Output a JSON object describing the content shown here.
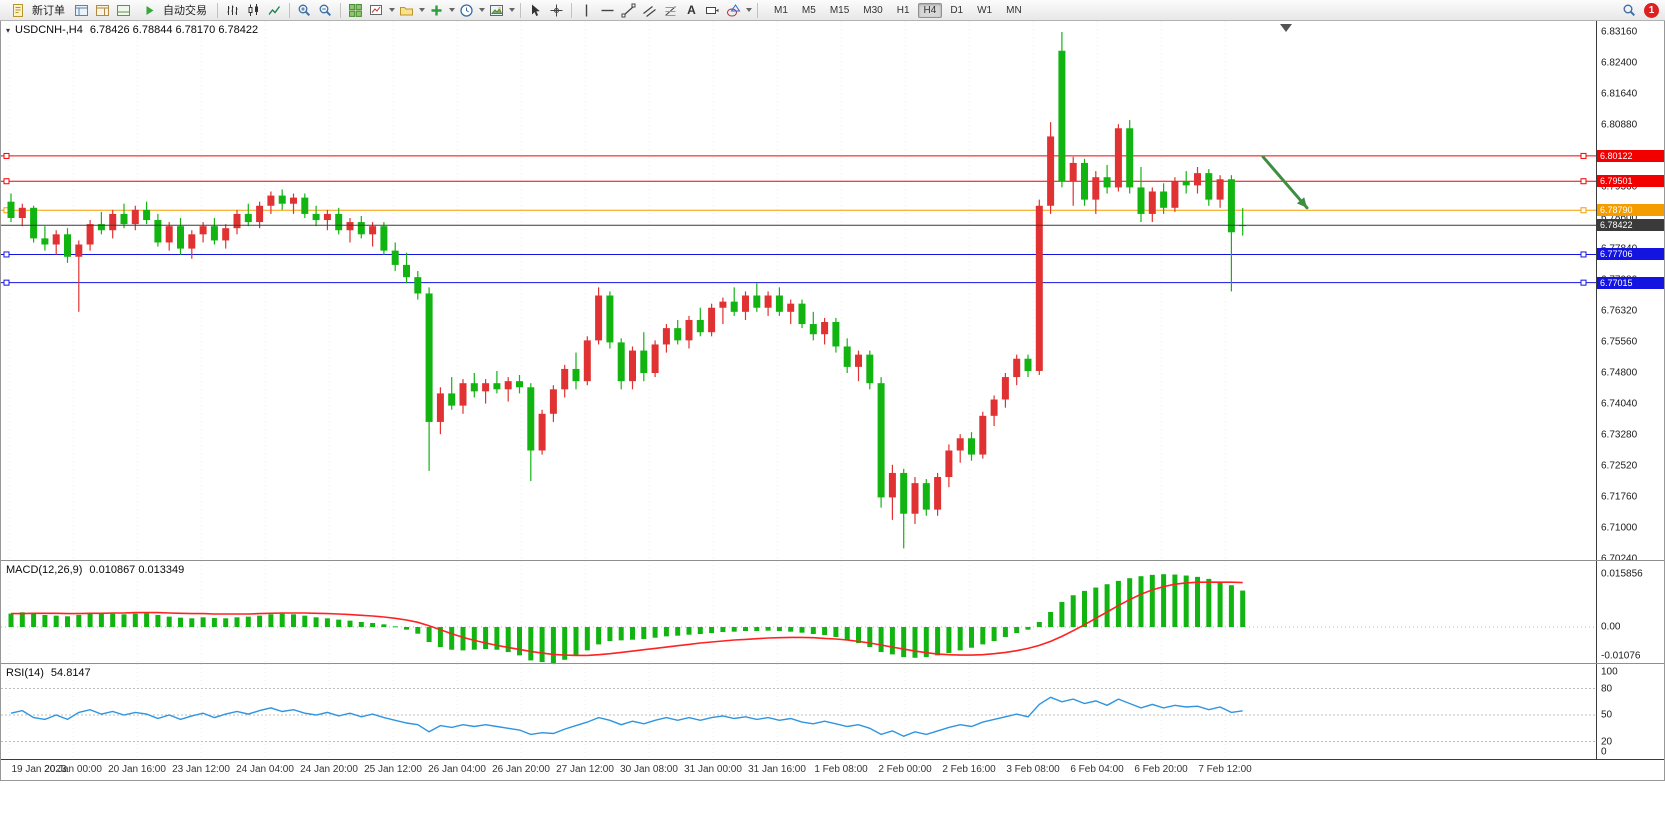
{
  "toolbar": {
    "new_order_label": "新订单",
    "auto_trading_label": "自动交易",
    "text_tool_label": "A",
    "timeframes": [
      "M1",
      "M5",
      "M15",
      "M30",
      "H1",
      "H4",
      "D1",
      "W1",
      "MN"
    ],
    "active_timeframe": "H4",
    "notification_count": "1"
  },
  "chart_header": {
    "title": "USDCNH-,H4",
    "ohlc": "6.78426 6.78844 6.78170 6.78422"
  },
  "chart_data": {
    "type": "candlestick",
    "symbol": "USDCNH-",
    "timeframe": "H4",
    "current_bar": {
      "open": 6.78426,
      "high": 6.78844,
      "low": 6.7817,
      "close": 6.78422
    },
    "price_axis": {
      "min": 6.7024,
      "max": 6.8316,
      "ticks": [
        "6.83160",
        "6.82400",
        "6.81640",
        "6.80880",
        "6.80120",
        "6.79360",
        "6.78600",
        "6.77840",
        "6.77080",
        "6.76320",
        "6.75560",
        "6.74800",
        "6.74040",
        "6.73280",
        "6.72520",
        "6.71760",
        "6.71000",
        "6.70240"
      ]
    },
    "time_ticks": [
      "19 Jan 2023",
      "20 Jan 00:00",
      "20 Jan 16:00",
      "23 Jan 12:00",
      "24 Jan 04:00",
      "24 Jan 20:00",
      "25 Jan 12:00",
      "26 Jan 04:00",
      "26 Jan 20:00",
      "27 Jan 12:00",
      "30 Jan 08:00",
      "31 Jan 00:00",
      "31 Jan 16:00",
      "1 Feb 08:00",
      "2 Feb 00:00",
      "2 Feb 16:00",
      "3 Feb 08:00",
      "6 Feb 04:00",
      "6 Feb 20:00",
      "7 Feb 12:00"
    ],
    "levels": [
      {
        "label": "6.80122",
        "price": 6.80122,
        "color": "#f20000"
      },
      {
        "label": "6.79501",
        "price": 6.79501,
        "color": "#f20000"
      },
      {
        "label": "6.78790",
        "price": 6.7879,
        "color": "#f59d00"
      },
      {
        "label": "6.77706",
        "price": 6.77706,
        "color": "#1414e0"
      },
      {
        "label": "6.77015",
        "price": 6.77015,
        "color": "#1414e0"
      }
    ],
    "bid_line": {
      "label": "6.78422",
      "price": 6.78422,
      "color": "#3a3a3a"
    },
    "annotation_arrow": {
      "from_price": 6.801,
      "to_price": 6.7885,
      "color": "#3e8e41"
    },
    "colors": {
      "bull": "#e03232",
      "bear": "#12b412",
      "macd_hist": "#12b412",
      "macd_signal": "#ff2222",
      "rsi_line": "#2f95e0"
    },
    "candles": [
      [
        6.79,
        6.792,
        6.785,
        6.786
      ],
      [
        6.786,
        6.7895,
        6.784,
        6.7885
      ],
      [
        6.7885,
        6.789,
        6.78,
        6.781
      ],
      [
        6.781,
        6.784,
        6.778,
        6.7795
      ],
      [
        6.7795,
        6.783,
        6.777,
        6.782
      ],
      [
        6.782,
        6.7835,
        6.775,
        6.7765
      ],
      [
        6.7765,
        6.7805,
        6.763,
        6.7795
      ],
      [
        6.7795,
        6.7855,
        6.778,
        6.7845
      ],
      [
        6.7845,
        6.7875,
        6.782,
        6.783
      ],
      [
        6.783,
        6.788,
        6.781,
        6.787
      ],
      [
        6.787,
        6.7895,
        6.7835,
        6.7845
      ],
      [
        6.7845,
        6.789,
        6.783,
        6.788
      ],
      [
        6.788,
        6.79,
        6.7845,
        6.7855
      ],
      [
        6.7855,
        6.787,
        6.779,
        6.78
      ],
      [
        6.78,
        6.785,
        6.778,
        6.784
      ],
      [
        6.784,
        6.786,
        6.777,
        6.7785
      ],
      [
        6.7785,
        6.783,
        6.776,
        6.782
      ],
      [
        6.782,
        6.785,
        6.78,
        6.784
      ],
      [
        6.784,
        6.786,
        6.7795,
        6.7805
      ],
      [
        6.7805,
        6.7845,
        6.7785,
        6.7835
      ],
      [
        6.7835,
        6.788,
        6.782,
        6.787
      ],
      [
        6.787,
        6.7895,
        6.784,
        6.785
      ],
      [
        6.785,
        6.79,
        6.7835,
        6.789
      ],
      [
        6.789,
        6.7925,
        6.787,
        6.7915
      ],
      [
        6.7915,
        6.793,
        6.788,
        6.7895
      ],
      [
        6.7895,
        6.792,
        6.787,
        6.791
      ],
      [
        6.791,
        6.792,
        6.786,
        6.787
      ],
      [
        6.787,
        6.789,
        6.784,
        6.7855
      ],
      [
        6.7855,
        6.788,
        6.783,
        6.787
      ],
      [
        6.787,
        6.7885,
        6.782,
        6.783
      ],
      [
        6.783,
        6.786,
        6.78,
        6.785
      ],
      [
        6.785,
        6.7865,
        6.781,
        6.782
      ],
      [
        6.782,
        6.785,
        6.779,
        6.784
      ],
      [
        6.784,
        6.785,
        6.777,
        6.778
      ],
      [
        6.778,
        6.78,
        6.773,
        6.7745
      ],
      [
        6.7745,
        6.7775,
        6.77,
        6.7715
      ],
      [
        6.7715,
        6.773,
        6.766,
        6.7675
      ],
      [
        6.7675,
        6.769,
        6.724,
        6.736
      ],
      [
        6.736,
        6.7445,
        6.733,
        6.743
      ],
      [
        6.743,
        6.747,
        6.739,
        6.74
      ],
      [
        6.74,
        6.7465,
        6.738,
        6.7455
      ],
      [
        6.7455,
        6.748,
        6.742,
        6.7435
      ],
      [
        6.7435,
        6.7465,
        6.7405,
        6.7455
      ],
      [
        6.7455,
        6.7485,
        6.743,
        6.744
      ],
      [
        6.744,
        6.747,
        6.741,
        6.746
      ],
      [
        6.746,
        6.7475,
        6.743,
        6.7445
      ],
      [
        6.7445,
        6.7455,
        6.7215,
        6.729
      ],
      [
        6.729,
        6.739,
        6.728,
        6.738
      ],
      [
        6.738,
        6.745,
        6.736,
        6.744
      ],
      [
        6.744,
        6.75,
        6.742,
        6.749
      ],
      [
        6.749,
        6.753,
        6.744,
        6.746
      ],
      [
        6.746,
        6.757,
        6.745,
        6.756
      ],
      [
        6.756,
        6.769,
        6.755,
        6.767
      ],
      [
        6.767,
        6.768,
        6.754,
        6.7555
      ],
      [
        6.7555,
        6.7565,
        6.744,
        6.746
      ],
      [
        6.746,
        6.7545,
        6.744,
        6.7535
      ],
      [
        6.7535,
        6.758,
        6.746,
        6.748
      ],
      [
        6.748,
        6.756,
        6.747,
        6.755
      ],
      [
        6.755,
        6.76,
        6.753,
        6.759
      ],
      [
        6.759,
        6.761,
        6.755,
        6.756
      ],
      [
        6.756,
        6.762,
        6.754,
        6.761
      ],
      [
        6.761,
        6.764,
        6.757,
        6.758
      ],
      [
        6.758,
        6.765,
        6.757,
        6.764
      ],
      [
        6.764,
        6.7665,
        6.76,
        6.7655
      ],
      [
        6.7655,
        6.769,
        6.762,
        6.763
      ],
      [
        6.763,
        6.768,
        6.761,
        6.767
      ],
      [
        6.767,
        6.77,
        6.763,
        6.764
      ],
      [
        6.764,
        6.768,
        6.762,
        6.767
      ],
      [
        6.767,
        6.769,
        6.762,
        6.763
      ],
      [
        6.763,
        6.766,
        6.76,
        6.765
      ],
      [
        6.765,
        6.766,
        6.759,
        6.76
      ],
      [
        6.76,
        6.763,
        6.756,
        6.7575
      ],
      [
        6.7575,
        6.7615,
        6.755,
        6.7605
      ],
      [
        6.7605,
        6.7615,
        6.753,
        6.7545
      ],
      [
        6.7545,
        6.7565,
        6.748,
        6.7495
      ],
      [
        6.7495,
        6.7535,
        6.746,
        6.7525
      ],
      [
        6.7525,
        6.7535,
        6.744,
        6.7455
      ],
      [
        6.7455,
        6.747,
        6.715,
        6.7175
      ],
      [
        6.7175,
        6.7255,
        6.712,
        6.7235
      ],
      [
        6.7235,
        6.7245,
        6.705,
        6.7135
      ],
      [
        6.7135,
        6.7225,
        6.711,
        6.721
      ],
      [
        6.721,
        6.722,
        6.713,
        6.7145
      ],
      [
        6.7145,
        6.7235,
        6.713,
        6.7225
      ],
      [
        6.7225,
        6.7305,
        6.72,
        6.729
      ],
      [
        6.729,
        6.733,
        6.726,
        6.732
      ],
      [
        6.732,
        6.7335,
        6.7265,
        6.728
      ],
      [
        6.728,
        6.7385,
        6.727,
        6.7375
      ],
      [
        6.7375,
        6.7425,
        6.735,
        6.7415
      ],
      [
        6.7415,
        6.748,
        6.7395,
        6.747
      ],
      [
        6.747,
        6.7525,
        6.745,
        6.7515
      ],
      [
        6.7515,
        6.7525,
        6.747,
        6.7485
      ],
      [
        6.7485,
        6.7905,
        6.7475,
        6.789
      ],
      [
        6.789,
        6.8095,
        6.787,
        6.806
      ],
      [
        6.827,
        6.8316,
        6.7935,
        6.795
      ],
      [
        6.795,
        6.801,
        6.789,
        6.7995
      ],
      [
        6.7995,
        6.8005,
        6.789,
        6.7905
      ],
      [
        6.7905,
        6.7975,
        6.787,
        6.796
      ],
      [
        6.796,
        6.799,
        6.792,
        6.7935
      ],
      [
        6.7935,
        6.809,
        6.7925,
        6.808
      ],
      [
        6.808,
        6.81,
        6.792,
        6.7935
      ],
      [
        6.7935,
        6.7985,
        6.785,
        6.787
      ],
      [
        6.787,
        6.7935,
        6.785,
        6.7925
      ],
      [
        6.7925,
        6.7945,
        6.787,
        6.7885
      ],
      [
        6.7885,
        6.796,
        6.7875,
        6.795
      ],
      [
        6.795,
        6.7975,
        6.792,
        6.794
      ],
      [
        6.794,
        6.7985,
        6.792,
        6.797
      ],
      [
        6.797,
        6.798,
        6.789,
        6.7905
      ],
      [
        6.7905,
        6.7965,
        6.7885,
        6.7955
      ],
      [
        6.7955,
        6.7965,
        6.768,
        6.7825
      ],
      [
        6.78426,
        6.78844,
        6.7817,
        6.78422
      ]
    ],
    "indicators": {
      "macd": {
        "name": "MACD(12,26,9)",
        "values_text": "0.010867 0.013349",
        "axis_ticks": [
          "0.015856",
          "0.00",
          "-0.01076"
        ],
        "max": 0.015856,
        "min": -0.01076,
        "histogram": [
          0.004,
          0.0044,
          0.0039,
          0.0036,
          0.0034,
          0.0032,
          0.0036,
          0.0041,
          0.0043,
          0.004,
          0.0038,
          0.004,
          0.0041,
          0.0036,
          0.0031,
          0.0028,
          0.0026,
          0.0029,
          0.0027,
          0.0026,
          0.0029,
          0.0031,
          0.0034,
          0.0038,
          0.004,
          0.0038,
          0.0034,
          0.0029,
          0.0026,
          0.0022,
          0.0019,
          0.0015,
          0.0012,
          0.0008,
          0.0002,
          -0.0008,
          -0.002,
          -0.0045,
          -0.006,
          -0.0068,
          -0.007,
          -0.0068,
          -0.0066,
          -0.0068,
          -0.0075,
          -0.0085,
          -0.01,
          -0.0105,
          -0.0108,
          -0.0098,
          -0.0085,
          -0.007,
          -0.0052,
          -0.0042,
          -0.004,
          -0.0038,
          -0.0036,
          -0.0032,
          -0.0028,
          -0.0026,
          -0.0023,
          -0.0021,
          -0.0018,
          -0.0015,
          -0.0014,
          -0.0012,
          -0.0012,
          -0.0011,
          -0.0012,
          -0.0014,
          -0.0017,
          -0.0021,
          -0.0024,
          -0.003,
          -0.0038,
          -0.0048,
          -0.006,
          -0.0075,
          -0.0082,
          -0.009,
          -0.0092,
          -0.009,
          -0.0085,
          -0.0078,
          -0.007,
          -0.0062,
          -0.0052,
          -0.0042,
          -0.003,
          -0.0018,
          -0.0008,
          0.0015,
          0.0045,
          0.0075,
          0.0095,
          0.0108,
          0.0118,
          0.0128,
          0.0138,
          0.0146,
          0.0152,
          0.0156,
          0.0158,
          0.0157,
          0.0154,
          0.015,
          0.0144,
          0.0136,
          0.0125,
          0.0109
        ],
        "signal": [
          0.004,
          0.004,
          0.0041,
          0.0041,
          0.0041,
          0.004,
          0.004,
          0.0041,
          0.0041,
          0.0042,
          0.0042,
          0.0043,
          0.0043,
          0.0043,
          0.0042,
          0.0041,
          0.004,
          0.004,
          0.0039,
          0.0039,
          0.0039,
          0.0039,
          0.004,
          0.0041,
          0.0042,
          0.0042,
          0.0042,
          0.0041,
          0.004,
          0.0039,
          0.0037,
          0.0035,
          0.0033,
          0.003,
          0.0026,
          0.0021,
          0.0014,
          0.0004,
          -0.0008,
          -0.002,
          -0.0031,
          -0.004,
          -0.0048,
          -0.0055,
          -0.0061,
          -0.0067,
          -0.0073,
          -0.0078,
          -0.0082,
          -0.0084,
          -0.0085,
          -0.0085,
          -0.0083,
          -0.008,
          -0.0076,
          -0.0072,
          -0.0068,
          -0.0064,
          -0.006,
          -0.0056,
          -0.0052,
          -0.0048,
          -0.0045,
          -0.0042,
          -0.0039,
          -0.0037,
          -0.0035,
          -0.0033,
          -0.0032,
          -0.0031,
          -0.0031,
          -0.0032,
          -0.0034,
          -0.0036,
          -0.0039,
          -0.0043,
          -0.0048,
          -0.0054,
          -0.006,
          -0.0066,
          -0.0072,
          -0.0077,
          -0.0081,
          -0.0083,
          -0.0084,
          -0.0084,
          -0.0083,
          -0.008,
          -0.0076,
          -0.0071,
          -0.0064,
          -0.0055,
          -0.0043,
          -0.0028,
          -0.0011,
          0.0007,
          0.0026,
          0.0045,
          0.0064,
          0.0082,
          0.0098,
          0.0111,
          0.0121,
          0.0128,
          0.0132,
          0.0134,
          0.0134,
          0.0134,
          0.0134,
          0.0133
        ]
      },
      "rsi": {
        "name": "RSI(14)",
        "value_text": "54.8147",
        "axis_ticks": [
          "100",
          "80",
          "50",
          "20",
          "0"
        ],
        "level_lines": [
          80,
          50,
          20
        ],
        "values": [
          52,
          55,
          47,
          45,
          50,
          45,
          53,
          56,
          51,
          54,
          50,
          53,
          51,
          46,
          50,
          45,
          49,
          52,
          47,
          51,
          54,
          51,
          55,
          58,
          54,
          56,
          52,
          50,
          53,
          49,
          52,
          48,
          51,
          47,
          44,
          41,
          39,
          31,
          38,
          36,
          39,
          37,
          39,
          37,
          35,
          33,
          28,
          30,
          29,
          34,
          38,
          42,
          47,
          44,
          39,
          43,
          40,
          44,
          47,
          44,
          47,
          44,
          47,
          49,
          46,
          48,
          45,
          47,
          44,
          46,
          42,
          40,
          43,
          40,
          37,
          39,
          35,
          28,
          32,
          26,
          31,
          28,
          32,
          36,
          39,
          37,
          42,
          45,
          48,
          51,
          48,
          62,
          70,
          65,
          68,
          63,
          66,
          61,
          68,
          63,
          58,
          62,
          58,
          61,
          59,
          60,
          56,
          59,
          53,
          54.8
        ]
      }
    }
  }
}
